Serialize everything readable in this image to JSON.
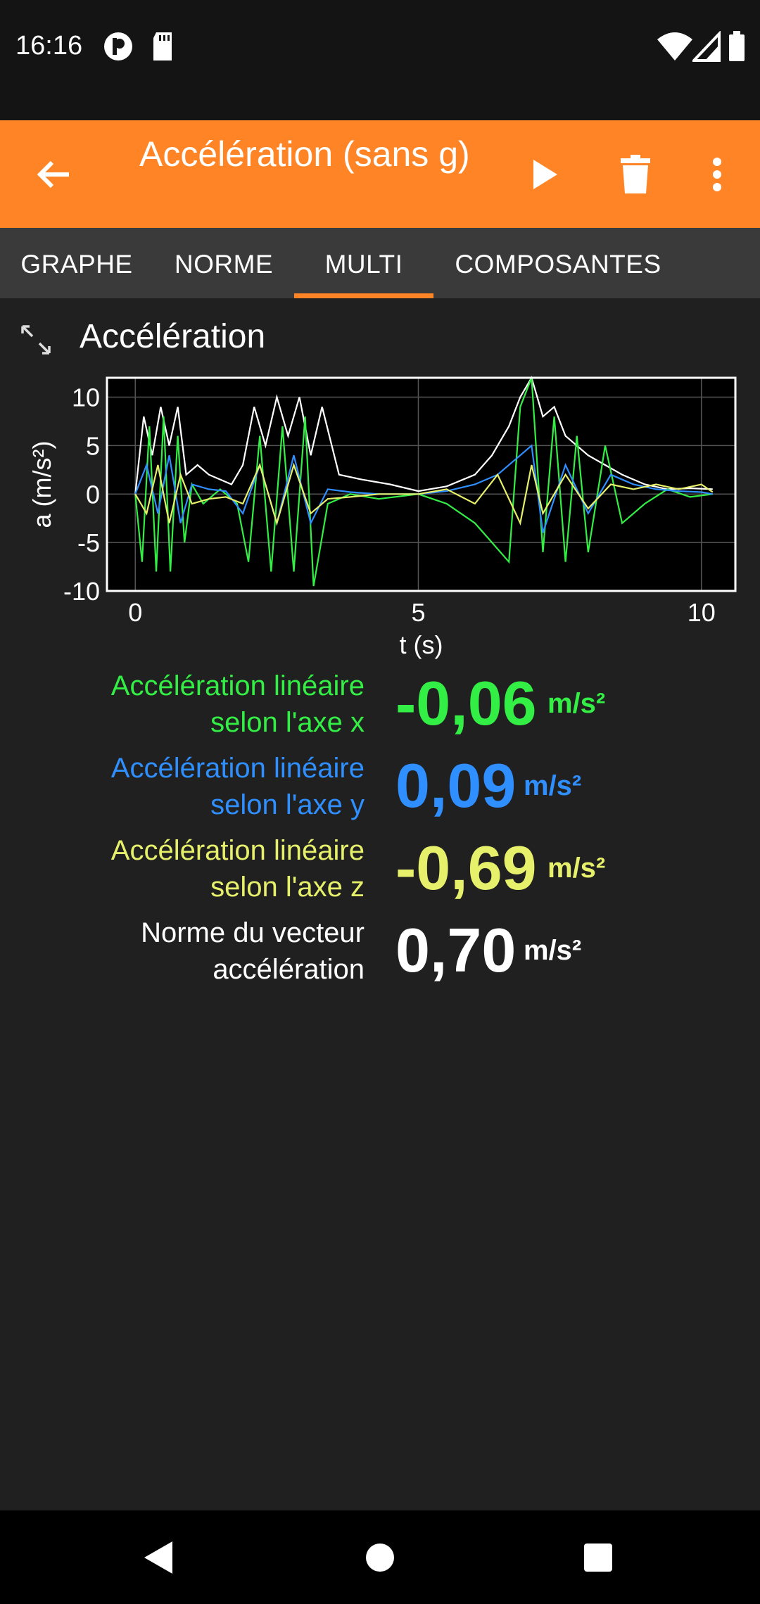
{
  "status": {
    "time": "16:16",
    "icons": [
      "media-icon",
      "sd-card-icon",
      "wifi-icon",
      "signal-icon",
      "battery-icon"
    ]
  },
  "appbar": {
    "title": "Accélération (sans g)",
    "actions": [
      "back-arrow-icon",
      "play-icon",
      "delete-icon",
      "more-vert-icon"
    ],
    "accent": "#ff8426"
  },
  "tabs": [
    {
      "label": "GRAPHE"
    },
    {
      "label": "NORME"
    },
    {
      "label": "MULTI"
    },
    {
      "label": "COMPOSANTES"
    }
  ],
  "selected_tab": "MULTI",
  "section": {
    "title": "Accélération"
  },
  "chart_data": {
    "type": "line",
    "title": "",
    "xlabel": "t (s)",
    "ylabel": "a (m/s²)",
    "xlim": [
      -0.5,
      10.6
    ],
    "ylim": [
      -10,
      12
    ],
    "xticks": [
      0,
      5,
      10
    ],
    "yticks": [
      -10,
      -5,
      0,
      5,
      10
    ],
    "grid": true,
    "series": [
      {
        "color": "#ffffff",
        "x": [
          0,
          0.15,
          0.3,
          0.45,
          0.6,
          0.75,
          0.9,
          1.1,
          1.3,
          1.5,
          1.7,
          1.9,
          2.1,
          2.3,
          2.5,
          2.7,
          2.9,
          3.1,
          3.3,
          3.6,
          4.0,
          4.5,
          5.0,
          5.5,
          6.0,
          6.3,
          6.6,
          6.8,
          7.0,
          7.2,
          7.4,
          7.6,
          7.8,
          8.0,
          8.3,
          8.6,
          9.0,
          9.4,
          9.8,
          10.2
        ],
        "y": [
          0,
          8,
          4,
          9,
          5,
          9,
          2,
          3,
          2,
          1.5,
          1,
          3,
          9,
          5,
          10,
          6,
          10,
          4,
          9,
          2,
          1.5,
          1,
          0.3,
          0.8,
          2,
          4,
          7,
          10,
          12,
          8,
          9,
          6,
          5,
          4,
          3,
          2,
          1,
          0.5,
          0.6,
          0.5
        ]
      },
      {
        "color": "#33ee44",
        "x": [
          0,
          0.12,
          0.25,
          0.37,
          0.5,
          0.62,
          0.75,
          0.87,
          1.0,
          1.2,
          1.5,
          1.8,
          2.0,
          2.2,
          2.4,
          2.6,
          2.8,
          3.0,
          3.15,
          3.4,
          3.8,
          4.3,
          5.0,
          5.5,
          6.0,
          6.3,
          6.6,
          6.8,
          7.0,
          7.2,
          7.4,
          7.6,
          7.8,
          8.0,
          8.3,
          8.6,
          9.0,
          9.4,
          9.8,
          10.2
        ],
        "y": [
          0,
          -7,
          7,
          -8,
          8,
          -8,
          6,
          -5,
          1,
          -1,
          0.5,
          -1,
          -7,
          6,
          -8,
          7,
          -8,
          8,
          -9.5,
          -1,
          0,
          -0.5,
          0,
          -1,
          -3,
          -5,
          -7,
          9,
          12,
          -6,
          8,
          -7,
          6,
          -6,
          5,
          -3,
          -1,
          0.5,
          -0.3,
          0
        ]
      },
      {
        "color": "#2f8fff",
        "x": [
          0,
          0.2,
          0.4,
          0.6,
          0.8,
          1.0,
          1.3,
          1.6,
          1.9,
          2.2,
          2.5,
          2.8,
          3.1,
          3.4,
          3.8,
          4.3,
          5.0,
          5.5,
          6.0,
          6.4,
          6.8,
          7.0,
          7.2,
          7.6,
          8.0,
          8.4,
          8.8,
          9.2,
          9.6,
          10.0,
          10.2
        ],
        "y": [
          0,
          3,
          -2,
          4,
          -3,
          1,
          0.5,
          0.3,
          -2,
          3,
          -3,
          4,
          -3,
          0.5,
          0.2,
          0,
          0,
          0.3,
          1,
          2,
          4,
          5,
          -4,
          3,
          -2,
          2,
          1,
          0.5,
          0.3,
          0.2,
          0
        ]
      },
      {
        "color": "#e6f06a",
        "x": [
          0,
          0.2,
          0.4,
          0.6,
          0.8,
          1.0,
          1.3,
          1.6,
          1.9,
          2.2,
          2.5,
          2.8,
          3.1,
          3.4,
          3.8,
          4.3,
          5.0,
          5.5,
          6.0,
          6.4,
          6.8,
          7.0,
          7.2,
          7.6,
          8.0,
          8.4,
          8.8,
          9.2,
          9.6,
          10.0,
          10.2
        ],
        "y": [
          0,
          -2,
          3,
          -3,
          2,
          -1,
          -0.5,
          -0.3,
          -1,
          3,
          -3,
          3,
          -2,
          -0.5,
          -0.3,
          0,
          0,
          0.5,
          -1,
          2,
          -3,
          3,
          -2,
          2,
          -1.5,
          1,
          0.5,
          1,
          0.5,
          1,
          0.2
        ]
      }
    ]
  },
  "readouts": [
    {
      "label_l1": "Accélération linéaire",
      "label_l2": "selon l'axe x",
      "value": "-0,06",
      "unit": "m/s²",
      "color": "#33ee44"
    },
    {
      "label_l1": "Accélération linéaire",
      "label_l2": "selon l'axe y",
      "value": "0,09",
      "unit": "m/s²",
      "color": "#2f8fff"
    },
    {
      "label_l1": "Accélération linéaire",
      "label_l2": "selon l'axe z",
      "value": "-0,69",
      "unit": "m/s²",
      "color": "#e6f06a"
    },
    {
      "label_l1": "Norme du vecteur",
      "label_l2": "accélération",
      "value": "0,70",
      "unit": "m/s²",
      "color": "#ffffff"
    }
  ],
  "navbar": {
    "icons": [
      "back-triangle-icon",
      "home-circle-icon",
      "recents-square-icon"
    ]
  }
}
